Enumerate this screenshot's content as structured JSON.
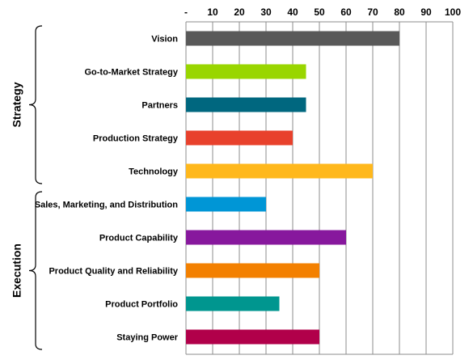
{
  "chart_data": {
    "type": "bar",
    "orientation": "horizontal",
    "title": "",
    "xlabel": "",
    "ylabel": "",
    "xlim": [
      0,
      100
    ],
    "ticks": [
      "-",
      "10",
      "20",
      "30",
      "40",
      "50",
      "60",
      "70",
      "80",
      "90",
      "100"
    ],
    "axis_position": "top",
    "grid": true,
    "categories": [
      "Vision",
      "Go-to-Market Strategy",
      "Partners",
      "Production Strategy",
      "Technology",
      "Sales, Marketing, and Distribution",
      "Product Capability",
      "Product Quality and Reliability",
      "Product Portfolio",
      "Staying Power"
    ],
    "values": [
      80,
      45,
      45,
      40,
      70,
      30,
      60,
      50,
      35,
      50
    ],
    "colors": [
      "#595959",
      "#99d600",
      "#00677f",
      "#e8412c",
      "#ffb81c",
      "#0096d6",
      "#87189d",
      "#f38000",
      "#00968f",
      "#b1004a"
    ],
    "groups": [
      {
        "label": "Strategy",
        "start": 0,
        "end": 4
      },
      {
        "label": "Execution",
        "start": 5,
        "end": 9
      }
    ]
  }
}
